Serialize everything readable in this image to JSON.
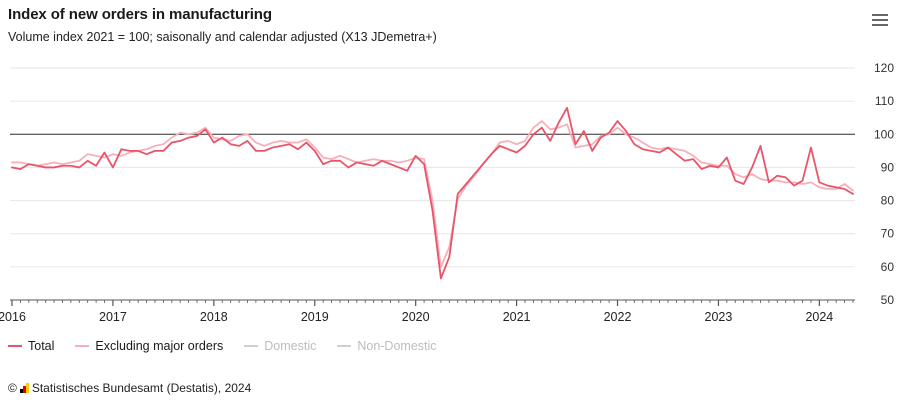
{
  "header": {
    "title": "Index of new orders in manufacturing",
    "subtitle": "Volume index 2021 = 100; saisonally and calendar adjusted (X13 JDemetra+)"
  },
  "menu": {
    "icon": "hamburger-menu-icon"
  },
  "footer": {
    "copyright_symbol": "©",
    "source": "Statistisches Bundesamt (Destatis), 2024",
    "logo_colors": [
      "#000000",
      "#dd0000",
      "#ffcc00"
    ]
  },
  "colors": {
    "total": "#e8556a",
    "excluding": "#f7b0ba",
    "hidden": "#cfcfcf",
    "grid": "#e6e6e6",
    "reference": "#333333"
  },
  "chart_data": {
    "type": "line",
    "title": "Index of new orders in manufacturing",
    "x_start": "2016-01",
    "x_end": "2024-05",
    "x_unit": "month",
    "xticks": [
      "2016",
      "2017",
      "2018",
      "2019",
      "2020",
      "2021",
      "2022",
      "2023",
      "2024"
    ],
    "yticks": [
      50,
      60,
      70,
      80,
      90,
      100,
      110,
      120
    ],
    "ylim": [
      50,
      120
    ],
    "reference_line": 100,
    "y_axis_side": "right",
    "legend_position": "bottom-left",
    "series": [
      {
        "name": "Total",
        "visible": true,
        "color": "#e8556a",
        "values": [
          90,
          89.5,
          91,
          90.5,
          90,
          90,
          90.5,
          90.5,
          90,
          92,
          90.5,
          94.5,
          90,
          95.5,
          95,
          95,
          94,
          95,
          95,
          97.5,
          98,
          99,
          99.5,
          101.5,
          97.5,
          99,
          97,
          96.5,
          98,
          95,
          95,
          96,
          96.5,
          97,
          95.5,
          97.5,
          95,
          91,
          92,
          92,
          90,
          91.5,
          91,
          90.5,
          92,
          91,
          90,
          89,
          93.5,
          91,
          77,
          56.5,
          63,
          82,
          85,
          88,
          91,
          94,
          96.5,
          95.5,
          94.5,
          96.5,
          100,
          102,
          98,
          103.5,
          108,
          97,
          101,
          95,
          99,
          100.5,
          104,
          101,
          97,
          95.5,
          95,
          94.5,
          96,
          94,
          92,
          92.5,
          89.5,
          90.5,
          90,
          93,
          86,
          85,
          90,
          96.5,
          85.5,
          87.5,
          87,
          84.5,
          86,
          96,
          85.5,
          84.5,
          84,
          83.5,
          82
        ]
      },
      {
        "name": "Excluding major orders",
        "visible": true,
        "color": "#f7b0ba",
        "values": [
          91.5,
          91.5,
          91,
          90.5,
          91,
          91.5,
          91,
          91.5,
          92,
          94,
          93.5,
          93,
          94,
          93.5,
          94.5,
          95,
          95.5,
          96.5,
          97,
          99,
          100.5,
          100,
          100.5,
          102,
          99,
          98.5,
          98,
          99.5,
          100,
          97.5,
          96.5,
          97.5,
          98,
          97.5,
          97.5,
          98.5,
          96,
          93,
          92.5,
          93.5,
          92.5,
          91.5,
          92,
          92.5,
          92,
          92,
          91.5,
          92,
          93,
          92.5,
          80,
          60,
          66,
          80.5,
          84.5,
          87.5,
          91,
          94,
          97.5,
          98,
          97,
          98,
          102,
          104,
          101.5,
          102,
          103,
          96,
          96.5,
          97,
          99.5,
          100,
          102,
          100,
          99,
          97.5,
          96,
          95.5,
          96,
          95.5,
          95,
          93.5,
          91.5,
          91,
          90.5,
          90.5,
          88,
          87,
          88,
          86.5,
          86,
          86,
          85.5,
          85.5,
          85,
          85.5,
          84,
          83.5,
          83.5,
          85,
          83
        ]
      },
      {
        "name": "Domestic",
        "visible": false,
        "color": "#cfcfcf",
        "values": []
      },
      {
        "name": "Non-Domestic",
        "visible": false,
        "color": "#cfcfcf",
        "values": []
      }
    ]
  }
}
